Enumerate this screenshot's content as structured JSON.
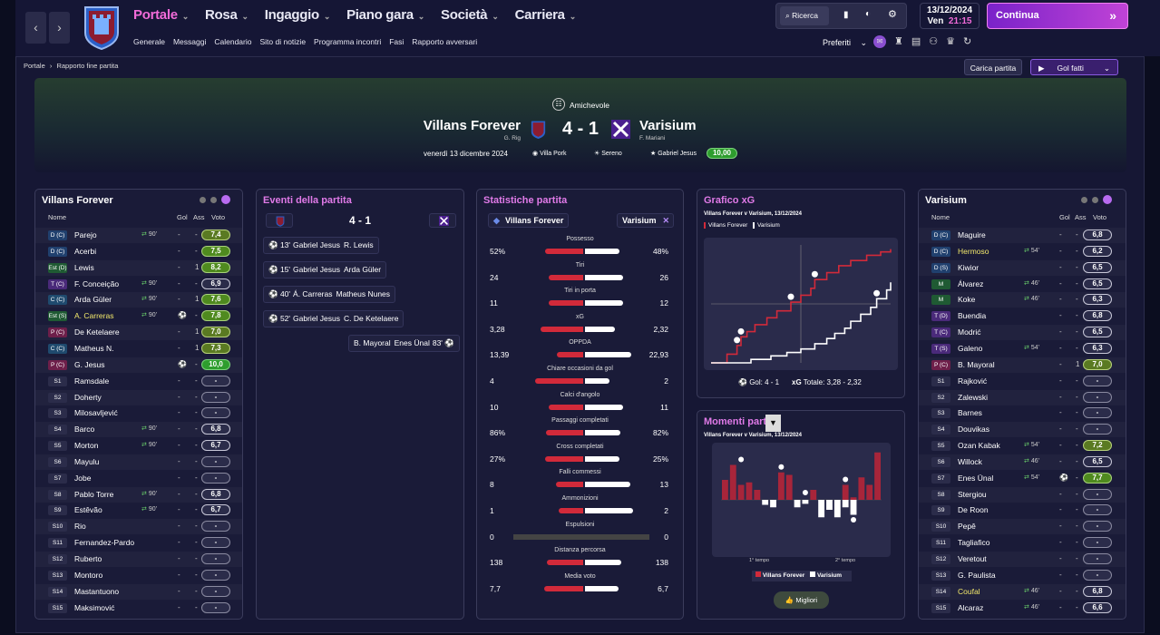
{
  "nav": {
    "back": "‹",
    "forward": "›",
    "menu": [
      {
        "label": "Portale",
        "active": true
      },
      {
        "label": "Rosa"
      },
      {
        "label": "Ingaggio"
      },
      {
        "label": "Piano gara"
      },
      {
        "label": "Società"
      },
      {
        "label": "Carriera"
      }
    ],
    "submenu": [
      "Generale",
      "Messaggi",
      "Calendario",
      "Sito di notizie",
      "Programma incontri",
      "Fasi",
      "Rapporto avversari"
    ],
    "search": "Ricerca",
    "date": "13/12/2024",
    "day": "Ven",
    "time": "21:15",
    "continue": "Continua",
    "preferiti": "Preferiti"
  },
  "breadcrumb": [
    "Portale",
    "Rapporto fine partita"
  ],
  "buttons": {
    "carica": "Carica partita",
    "gol": "Gol fatti"
  },
  "match": {
    "competition": "Amichevole",
    "home": "Villans Forever",
    "home_manager": "G. Rig",
    "score": "4 - 1",
    "away": "Varisium",
    "away_manager": "F. Mariani",
    "date": "venerdì 13 dicembre 2024",
    "stadium": "Villa Pork",
    "weather": "Sereno",
    "motm": "Gabriel Jesus",
    "motm_rating": "10,00"
  },
  "colors": {
    "accent": "#f26bd9",
    "home": "#d22a3a",
    "away": "#ffffff",
    "rating_green": "#2e9d2e"
  },
  "home_panel": {
    "title": "Villans Forever",
    "headers": [
      "Nome",
      "Gol",
      "Ass",
      "Voto"
    ],
    "rows": [
      {
        "pos": "D (C)",
        "name": "Parejo",
        "sub": "90'",
        "gol": "-",
        "ass": "-",
        "vote": "7,4"
      },
      {
        "pos": "D (C)",
        "name": "Acerbi",
        "sub": "",
        "gol": "-",
        "ass": "-",
        "vote": "7,5"
      },
      {
        "pos": "Est (D)",
        "name": "Lewis",
        "sub": "",
        "gol": "-",
        "ass": "1",
        "vote": "8,2"
      },
      {
        "pos": "T (C)",
        "name": "F. Conceição",
        "sub": "90'",
        "gol": "-",
        "ass": "-",
        "vote": "6,9"
      },
      {
        "pos": "C (C)",
        "name": "Arda Güler",
        "sub": "90'",
        "gol": "-",
        "ass": "1",
        "vote": "7,6"
      },
      {
        "pos": "Est (S)",
        "name": "A. Carreras",
        "sub": "90'",
        "gol": "⚽",
        "ass": "-",
        "vote": "7,8",
        "hl": true
      },
      {
        "pos": "P (C)",
        "name": "De Ketelaere",
        "sub": "",
        "gol": "-",
        "ass": "1",
        "vote": "7,0"
      },
      {
        "pos": "C (C)",
        "name": "Matheus N.",
        "sub": "",
        "gol": "-",
        "ass": "1",
        "vote": "7,3"
      },
      {
        "pos": "P (C)",
        "name": "G. Jesus",
        "sub": "",
        "gol": "⚽",
        "ass": "-",
        "vote": "10,0"
      },
      {
        "pos": "S1",
        "name": "Ramsdale",
        "sub": "",
        "gol": "-",
        "ass": "-",
        "vote": "-"
      },
      {
        "pos": "S2",
        "name": "Doherty",
        "sub": "",
        "gol": "-",
        "ass": "-",
        "vote": "-"
      },
      {
        "pos": "S3",
        "name": "Milosavljević",
        "sub": "",
        "gol": "-",
        "ass": "-",
        "vote": "-"
      },
      {
        "pos": "S4",
        "name": "Barco",
        "sub": "90'",
        "gol": "-",
        "ass": "-",
        "vote": "6,8"
      },
      {
        "pos": "S5",
        "name": "Morton",
        "sub": "90'",
        "gol": "-",
        "ass": "-",
        "vote": "6,7"
      },
      {
        "pos": "S6",
        "name": "Mayulu",
        "sub": "",
        "gol": "-",
        "ass": "-",
        "vote": "-"
      },
      {
        "pos": "S7",
        "name": "Jobe",
        "sub": "",
        "gol": "-",
        "ass": "-",
        "vote": "-"
      },
      {
        "pos": "S8",
        "name": "Pablo Torre",
        "sub": "90'",
        "gol": "-",
        "ass": "-",
        "vote": "6,8"
      },
      {
        "pos": "S9",
        "name": "Estêvão",
        "sub": "90'",
        "gol": "-",
        "ass": "-",
        "vote": "6,7"
      },
      {
        "pos": "S10",
        "name": "Rio",
        "sub": "",
        "gol": "-",
        "ass": "-",
        "vote": "-"
      },
      {
        "pos": "S11",
        "name": "Fernandez-Pardo",
        "sub": "",
        "gol": "-",
        "ass": "-",
        "vote": "-"
      },
      {
        "pos": "S12",
        "name": "Ruberto",
        "sub": "",
        "gol": "-",
        "ass": "-",
        "vote": "-"
      },
      {
        "pos": "S13",
        "name": "Montoro",
        "sub": "",
        "gol": "-",
        "ass": "-",
        "vote": "-"
      },
      {
        "pos": "S14",
        "name": "Mastantuono",
        "sub": "",
        "gol": "-",
        "ass": "-",
        "vote": "-"
      },
      {
        "pos": "S15",
        "name": "Maksimović",
        "sub": "",
        "gol": "-",
        "ass": "-",
        "vote": "-"
      }
    ]
  },
  "events": {
    "title": "Eventi della partita",
    "score": "4 - 1",
    "items": [
      {
        "min": "13'",
        "scorer": "Gabriel Jesus",
        "assist": "R. Lewis",
        "side": "home"
      },
      {
        "min": "15'",
        "scorer": "Gabriel Jesus",
        "assist": "Arda Güler",
        "side": "home"
      },
      {
        "min": "40'",
        "scorer": "Á. Carreras",
        "assist": "Matheus Nunes",
        "side": "home"
      },
      {
        "min": "52'",
        "scorer": "Gabriel Jesus",
        "assist": "C. De Ketelaere",
        "side": "home"
      },
      {
        "min": "83'",
        "scorer": "Enes Ünal",
        "assist": "B. Mayoral",
        "side": "away"
      }
    ]
  },
  "stats": {
    "title": "Statistiche partita",
    "home": "Villans Forever",
    "away": "Varisium",
    "rows": [
      {
        "label": "Possesso",
        "h": "52%",
        "a": "48%",
        "hv": 52,
        "av": 48
      },
      {
        "label": "Tiri",
        "h": "24",
        "a": "26",
        "hv": 24,
        "av": 26
      },
      {
        "label": "Tiri in porta",
        "h": "11",
        "a": "12",
        "hv": 11,
        "av": 12
      },
      {
        "label": "xG",
        "h": "3,28",
        "a": "2,32",
        "hv": 3.28,
        "av": 2.32
      },
      {
        "label": "OPPDA",
        "h": "13,39",
        "a": "22,93",
        "hv": 13.39,
        "av": 22.93
      },
      {
        "label": "Chiare occasioni da gol",
        "h": "4",
        "a": "2",
        "hv": 4,
        "av": 2
      },
      {
        "label": "Calci d'angolo",
        "h": "10",
        "a": "11",
        "hv": 10,
        "av": 11
      },
      {
        "label": "Passaggi completati",
        "h": "86%",
        "a": "82%",
        "hv": 86,
        "av": 82
      },
      {
        "label": "Cross completati",
        "h": "27%",
        "a": "25%",
        "hv": 27,
        "av": 25
      },
      {
        "label": "Falli commessi",
        "h": "8",
        "a": "13",
        "hv": 8,
        "av": 13
      },
      {
        "label": "Ammonizioni",
        "h": "1",
        "a": "2",
        "hv": 1,
        "av": 2
      },
      {
        "label": "Espulsioni",
        "h": "0",
        "a": "0",
        "hv": 0,
        "av": 0
      },
      {
        "label": "Distanza percorsa",
        "h": "138",
        "a": "138",
        "hv": 138,
        "av": 138
      },
      {
        "label": "Media voto",
        "h": "7,7",
        "a": "6,7",
        "hv": 7.7,
        "av": 6.7
      }
    ]
  },
  "xg": {
    "title": "Grafico xG",
    "subtitle": "Villans Forever v Varisium, 13/12/2024",
    "legend": [
      "Villans Forever",
      "Varisium"
    ],
    "gol_label": "Gol: 4 - 1",
    "xg_label": "xG",
    "xg_total": "Totale: 3,28 - 2,32"
  },
  "momentum": {
    "title": "Momenti partita",
    "subtitle": "Villans Forever v Varisium, 13/12/2024",
    "t1": "1° tempo",
    "t2": "2° tempo",
    "legend": [
      "Villans Forever",
      "Varisium"
    ],
    "button": "Migliori"
  },
  "chart_data": [
    {
      "type": "line",
      "title": "Grafico xG",
      "series": [
        {
          "name": "Villans Forever",
          "x": [
            0,
            8,
            13,
            15,
            18,
            22,
            28,
            33,
            40,
            45,
            50,
            52,
            58,
            64,
            70,
            78,
            85,
            90
          ],
          "values": [
            0,
            0.25,
            0.5,
            0.75,
            0.9,
            1.1,
            1.3,
            1.5,
            1.75,
            1.95,
            2.15,
            2.4,
            2.6,
            2.8,
            2.95,
            3.1,
            3.2,
            3.28
          ]
        },
        {
          "name": "Varisium",
          "x": [
            0,
            20,
            30,
            38,
            45,
            52,
            58,
            62,
            67,
            70,
            75,
            80,
            83,
            88,
            90
          ],
          "values": [
            0,
            0.1,
            0.2,
            0.3,
            0.4,
            0.55,
            0.7,
            0.85,
            1.0,
            1.2,
            1.4,
            1.6,
            1.85,
            2.1,
            2.32
          ]
        }
      ]
    },
    {
      "type": "bar",
      "title": "Momenti partita",
      "series": [
        {
          "name": "Villans Forever",
          "values": [
            0.4,
            0.7,
            0.3,
            0.35,
            0.2,
            0,
            0,
            0.55,
            0.5,
            0,
            0,
            0.2,
            0,
            0,
            0,
            0.3,
            0.05,
            0.45,
            0.3,
            0.95
          ]
        },
        {
          "name": "Varisium",
          "values": [
            0,
            0,
            0,
            0,
            0,
            0.1,
            0.15,
            0,
            0,
            0.15,
            0.08,
            0,
            0.35,
            0.2,
            0.35,
            0.15,
            0.3,
            0,
            0,
            0
          ]
        }
      ]
    }
  ],
  "away_panel": {
    "title": "Varisium",
    "headers": [
      "Nome",
      "Gol",
      "Ass",
      "Voto"
    ],
    "rows": [
      {
        "pos": "D (C)",
        "name": "Maguire",
        "sub": "",
        "gol": "-",
        "ass": "-",
        "vote": "6,8"
      },
      {
        "pos": "D (C)",
        "name": "Hermoso",
        "sub": "54'",
        "gol": "-",
        "ass": "-",
        "vote": "6,2",
        "hl": true
      },
      {
        "pos": "D (S)",
        "name": "Kiwior",
        "sub": "",
        "gol": "-",
        "ass": "-",
        "vote": "6,5"
      },
      {
        "pos": "M",
        "name": "Álvarez",
        "sub": "46'",
        "gol": "-",
        "ass": "-",
        "vote": "6,5"
      },
      {
        "pos": "M",
        "name": "Koke",
        "sub": "46'",
        "gol": "-",
        "ass": "-",
        "vote": "6,3"
      },
      {
        "pos": "T (D)",
        "name": "Buendia",
        "sub": "",
        "gol": "-",
        "ass": "-",
        "vote": "6,8"
      },
      {
        "pos": "T (C)",
        "name": "Modrić",
        "sub": "",
        "gol": "-",
        "ass": "-",
        "vote": "6,5"
      },
      {
        "pos": "T (S)",
        "name": "Galeno",
        "sub": "54'",
        "gol": "-",
        "ass": "-",
        "vote": "6,3"
      },
      {
        "pos": "P (C)",
        "name": "B. Mayoral",
        "sub": "",
        "gol": "-",
        "ass": "1",
        "vote": "7,0"
      },
      {
        "pos": "S1",
        "name": "Rajković",
        "sub": "",
        "gol": "-",
        "ass": "-",
        "vote": "-"
      },
      {
        "pos": "S2",
        "name": "Zalewski",
        "sub": "",
        "gol": "-",
        "ass": "-",
        "vote": "-"
      },
      {
        "pos": "S3",
        "name": "Barnes",
        "sub": "",
        "gol": "-",
        "ass": "-",
        "vote": "-"
      },
      {
        "pos": "S4",
        "name": "Douvikas",
        "sub": "",
        "gol": "-",
        "ass": "-",
        "vote": "-"
      },
      {
        "pos": "S5",
        "name": "Ozan Kabak",
        "sub": "54'",
        "gol": "-",
        "ass": "-",
        "vote": "7,2"
      },
      {
        "pos": "S6",
        "name": "Willock",
        "sub": "46'",
        "gol": "-",
        "ass": "-",
        "vote": "6,5"
      },
      {
        "pos": "S7",
        "name": "Enes Ünal",
        "sub": "54'",
        "gol": "⚽",
        "ass": "-",
        "vote": "7,7"
      },
      {
        "pos": "S8",
        "name": "Stergiou",
        "sub": "",
        "gol": "-",
        "ass": "-",
        "vote": "-"
      },
      {
        "pos": "S9",
        "name": "De Roon",
        "sub": "",
        "gol": "-",
        "ass": "-",
        "vote": "-"
      },
      {
        "pos": "S10",
        "name": "Pepê",
        "sub": "",
        "gol": "-",
        "ass": "-",
        "vote": "-"
      },
      {
        "pos": "S11",
        "name": "Tagliafico",
        "sub": "",
        "gol": "-",
        "ass": "-",
        "vote": "-"
      },
      {
        "pos": "S12",
        "name": "Veretout",
        "sub": "",
        "gol": "-",
        "ass": "-",
        "vote": "-"
      },
      {
        "pos": "S13",
        "name": "G. Paulista",
        "sub": "",
        "gol": "-",
        "ass": "-",
        "vote": "-"
      },
      {
        "pos": "S14",
        "name": "Coufal",
        "sub": "46'",
        "gol": "-",
        "ass": "-",
        "vote": "6,8",
        "hl": true
      },
      {
        "pos": "S15",
        "name": "Alcaraz",
        "sub": "46'",
        "gol": "-",
        "ass": "-",
        "vote": "6,6"
      }
    ]
  }
}
